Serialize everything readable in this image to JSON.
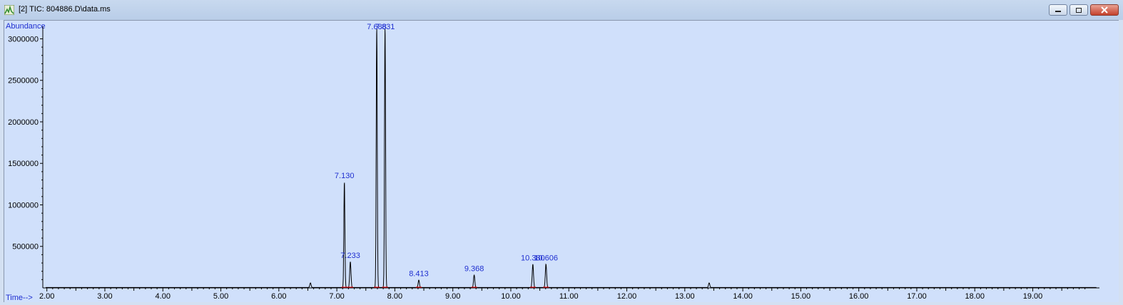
{
  "window": {
    "title": "[2] TIC: 804886.D\\data.ms",
    "icon": "chromatogram-app-icon"
  },
  "chart_data": {
    "type": "line",
    "ylabel": "Abundance",
    "xlabel": "Time-->",
    "xlim": [
      1.93,
      20.15
    ],
    "ylim": [
      0,
      3150000
    ],
    "x_ticks": [
      2.0,
      3.0,
      4.0,
      5.0,
      6.0,
      7.0,
      8.0,
      9.0,
      10.0,
      11.0,
      12.0,
      13.0,
      14.0,
      15.0,
      16.0,
      17.0,
      18.0,
      19.0
    ],
    "x_tick_labels": [
      "2.00",
      "3.00",
      "4.00",
      "5.00",
      "6.00",
      "7.00",
      "8.00",
      "9.00",
      "10.00",
      "11.00",
      "12.00",
      "13.00",
      "14.00",
      "15.00",
      "16.00",
      "17.00",
      "18.00",
      "19.00"
    ],
    "y_ticks": [
      500000,
      1000000,
      1500000,
      2000000,
      2500000,
      3000000
    ],
    "y_tick_labels": [
      "500000",
      "1000000",
      "1500000",
      "2000000",
      "2500000",
      "3000000"
    ],
    "baseline": 5000,
    "peaks": [
      {
        "rt": 6.545,
        "height": 55000,
        "label": ""
      },
      {
        "rt": 7.13,
        "height": 1270000,
        "label": "7.130"
      },
      {
        "rt": 7.233,
        "height": 310000,
        "label": "7.233"
      },
      {
        "rt": 7.688,
        "height": 3130000,
        "label": "7.688"
      },
      {
        "rt": 7.831,
        "height": 3130000,
        "label": "7.831"
      },
      {
        "rt": 8.413,
        "height": 90000,
        "label": "8.413"
      },
      {
        "rt": 9.368,
        "height": 150000,
        "label": "9.368"
      },
      {
        "rt": 10.38,
        "height": 280000,
        "label": "10.380"
      },
      {
        "rt": 10.606,
        "height": 280000,
        "label": "10.606"
      },
      {
        "rt": 13.42,
        "height": 55000,
        "label": ""
      }
    ],
    "colors": {
      "trace": "#000000",
      "axis": "#000000",
      "labels": "#1f2fd0",
      "integration": "#ff0000",
      "background": "#d0e0fb"
    }
  }
}
